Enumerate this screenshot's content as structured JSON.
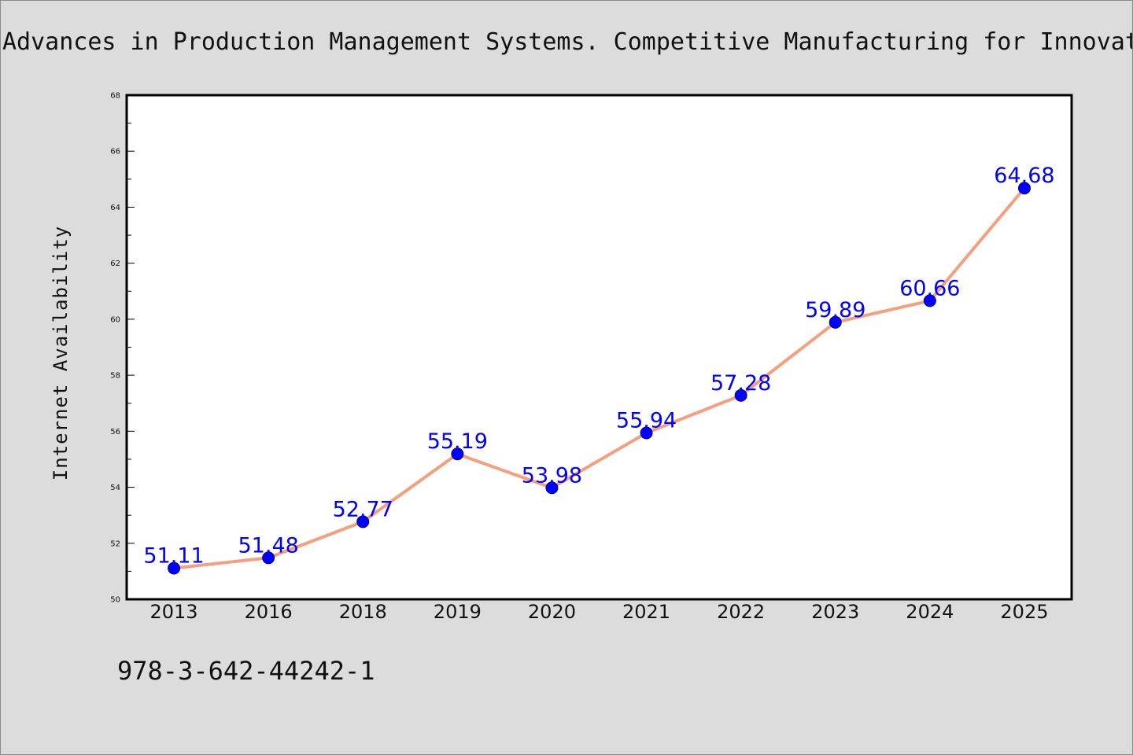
{
  "chart_data": {
    "type": "line",
    "title": "Advances in Production Management Systems. Competitive Manufacturing for Innovative Products and Services",
    "xlabel": "",
    "ylabel": "Internet Availability",
    "categories": [
      "2013",
      "2016",
      "2018",
      "2019",
      "2020",
      "2021",
      "2022",
      "2023",
      "2024",
      "2025"
    ],
    "series": [
      {
        "values": [
          51.11,
          51.48,
          52.77,
          55.19,
          53.98,
          55.94,
          57.28,
          59.89,
          60.66,
          64.68
        ]
      }
    ],
    "data_labels": [
      "51.11",
      "51.48",
      "52.77",
      "55.19",
      "53.98",
      "55.94",
      "57.28",
      "59.89",
      "60.66",
      "64.68"
    ],
    "ylim": [
      50,
      68
    ],
    "yticks": [
      "50",
      "52",
      "54",
      "56",
      "58",
      "60",
      "62",
      "64",
      "66",
      "68"
    ],
    "grid": false,
    "legend": "none",
    "colors": {
      "line": "#f4a07f",
      "marker": "#0000ff",
      "marker_edge": "#000080",
      "data_label": "#0000ff",
      "background": "#dcdcdc",
      "plot_background": "#ffffff"
    }
  },
  "footer": {
    "isbn": "978-3-642-44242-1"
  }
}
